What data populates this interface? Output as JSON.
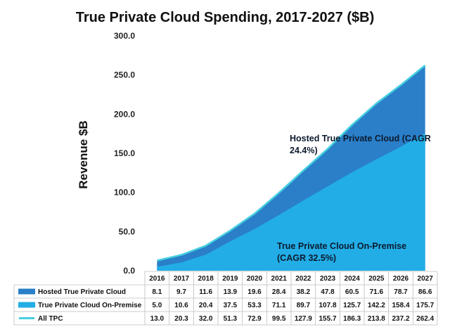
{
  "chart_data": {
    "type": "area",
    "title": "True Private Cloud Spending, 2017-2027 ($B)",
    "ylabel": "Revenue $B",
    "xlabel": "",
    "ylim": [
      0,
      300
    ],
    "yticks": [
      "0.0",
      "50.0",
      "100.0",
      "150.0",
      "200.0",
      "250.0",
      "300.0"
    ],
    "grid": false,
    "legend": "data-table",
    "x": [
      "2016",
      "2017",
      "2018",
      "2019",
      "2020",
      "2021",
      "2022",
      "2023",
      "2024",
      "2025",
      "2026",
      "2027"
    ],
    "series": [
      {
        "name": "Hosted True Private Cloud",
        "values": [
          8.1,
          9.7,
          11.6,
          13.9,
          19.6,
          28.4,
          38.2,
          47.8,
          60.5,
          71.6,
          78.7,
          86.6
        ],
        "labels": [
          "8.1",
          "9.7",
          "11.6",
          "13.9",
          "19.6",
          "28.4",
          "38.2",
          "47.8",
          "60.5",
          "71.6",
          "78.7",
          "86.6"
        ],
        "color": "#2a7fc8"
      },
      {
        "name": "True Private Cloud On-Premise",
        "values": [
          5.0,
          10.6,
          20.4,
          37.5,
          53.3,
          71.1,
          89.7,
          107.8,
          125.7,
          142.2,
          158.4,
          175.7
        ],
        "labels": [
          "5.0",
          "10.6",
          "20.4",
          "37.5",
          "53.3",
          "71.1",
          "89.7",
          "107.8",
          "125.7",
          "142.2",
          "158.4",
          "175.7"
        ],
        "color": "#22ade6"
      },
      {
        "name": "All TPC",
        "values": [
          13.0,
          20.3,
          32.0,
          51.3,
          72.9,
          99.5,
          127.9,
          155.7,
          186.3,
          213.8,
          237.2,
          262.4
        ],
        "labels": [
          "13.0",
          "20.3",
          "32.0",
          "51.3",
          "72.9",
          "99.5",
          "127.9",
          "155.7",
          "186.3",
          "213.8",
          "237.2",
          "262.4"
        ],
        "color": "#45cfe0"
      }
    ],
    "annotations": [
      {
        "lines": [
          "Hosted True Private Cloud (CAGR",
          "24.4%)"
        ]
      },
      {
        "lines": [
          "True Private Cloud On-Premise",
          "(CAGR 32.5%)"
        ]
      }
    ]
  }
}
